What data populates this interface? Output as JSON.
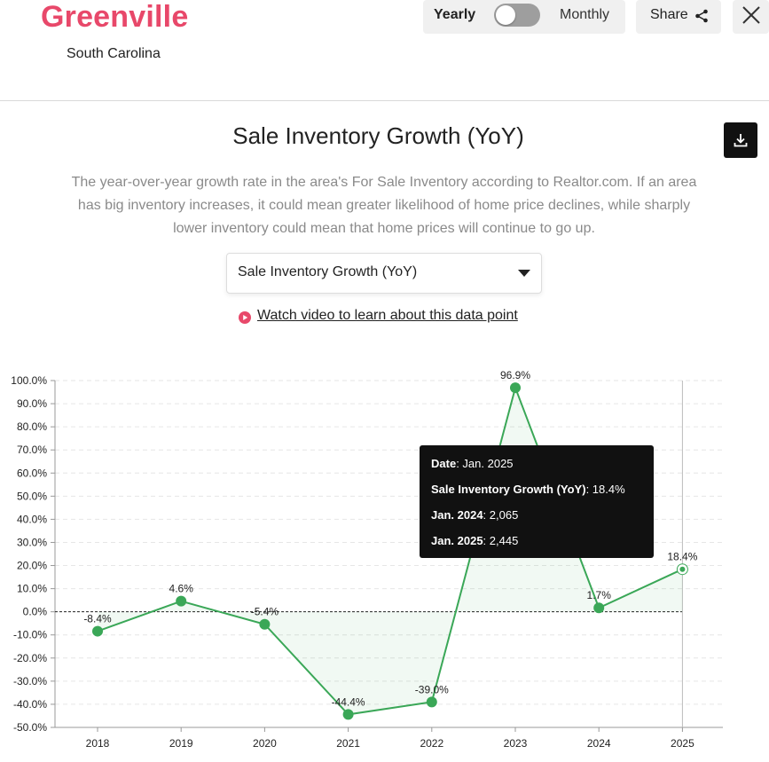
{
  "header": {
    "city": "Greenville",
    "state": "South Carolina",
    "toggle": {
      "left_label": "Yearly",
      "right_label": "Monthly",
      "selected": "Yearly"
    },
    "share_label": "Share"
  },
  "main": {
    "title": "Sale Inventory Growth (YoY)",
    "description": "The year-over-year growth rate in the area's For Sale Inventory according to Realtor.com. If an area has big inventory increases, it could mean greater likelihood of home price declines, while sharply lower inventory could mean that home prices will continue to go up.",
    "select_value": "Sale Inventory Growth (YoY)",
    "video_link": "Watch video to learn about this data point"
  },
  "colors": {
    "brand": "#e8486a",
    "line": "#3aa757",
    "tooltip_bg": "#111111"
  },
  "icons": [
    "share-icon",
    "close-icon",
    "download-icon",
    "play-icon",
    "chevron-down-icon"
  ],
  "tooltip": {
    "rows": [
      {
        "label": "Date",
        "value": "Jan. 2025"
      },
      {
        "label": "Sale Inventory Growth (YoY)",
        "value": "18.4%"
      },
      {
        "label": "Jan. 2024",
        "value": "2,065"
      },
      {
        "label": "Jan. 2025",
        "value": "2,445"
      }
    ]
  },
  "chart_data": {
    "type": "line",
    "categories": [
      "2018",
      "2019",
      "2020",
      "2021",
      "2022",
      "2023",
      "2024",
      "2025"
    ],
    "series": [
      {
        "values": [
          -8.4,
          4.6,
          -5.4,
          -44.4,
          -39.0,
          96.9,
          1.7,
          18.4
        ]
      }
    ],
    "data_labels": [
      "-8.4%",
      "4.6%",
      "-5.4%",
      "-44.4%",
      "-39.0%",
      "96.9%",
      "1.7%",
      "18.4%"
    ],
    "ylim": [
      -50,
      100
    ],
    "yticks": [
      100,
      90,
      80,
      70,
      60,
      50,
      40,
      30,
      20,
      10,
      0,
      -10,
      -20,
      -30,
      -40,
      -50
    ],
    "ytick_labels": [
      "100.0%",
      "90.0%",
      "80.0%",
      "70.0%",
      "60.0%",
      "50.0%",
      "40.0%",
      "30.0%",
      "20.0%",
      "10.0%",
      "0.0%",
      "-10.0%",
      "-20.0%",
      "-30.0%",
      "-40.0%",
      "-50.0%"
    ],
    "highlighted_category": "2025",
    "grid": true,
    "zero_line": "dashed"
  }
}
